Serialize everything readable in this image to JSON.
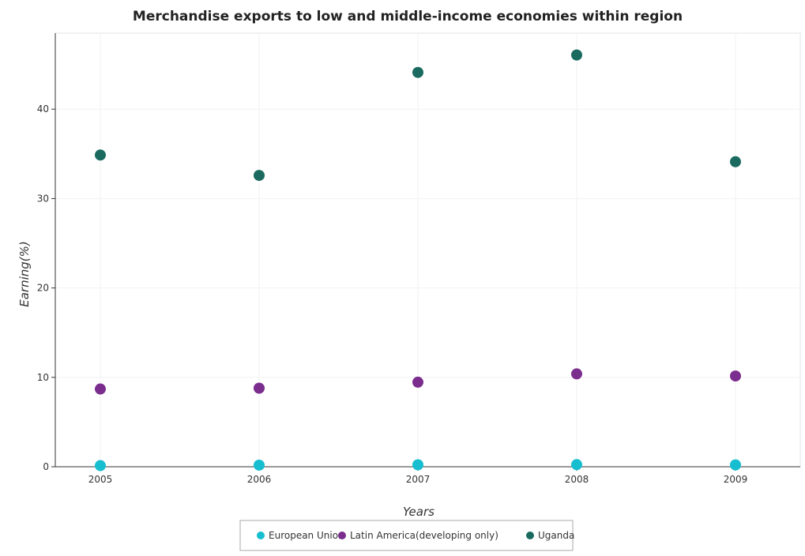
{
  "chart_data": {
    "type": "scatter",
    "title": "Merchandise exports to low and middle-income economies within region",
    "xlabel": "Years",
    "ylabel": "Earning(%)",
    "categories": [
      "2005",
      "2006",
      "2007",
      "2008",
      "2009"
    ],
    "ylim": [
      0,
      48.5
    ],
    "yticks": [
      "0",
      "10",
      "20",
      "30",
      "40"
    ],
    "grid": true,
    "legend_position": "bottom-center",
    "series": [
      {
        "name": "European Union",
        "color": "#17becf",
        "values": [
          0.13,
          0.18,
          0.22,
          0.24,
          0.21
        ]
      },
      {
        "name": "Latin America(developing only)",
        "color": "#7b2d8e",
        "values": [
          8.7,
          8.79,
          9.46,
          10.39,
          10.15
        ]
      },
      {
        "name": "Uganda",
        "color": "#1a6a60",
        "values": [
          34.87,
          32.59,
          44.11,
          46.06,
          34.12
        ]
      }
    ]
  }
}
